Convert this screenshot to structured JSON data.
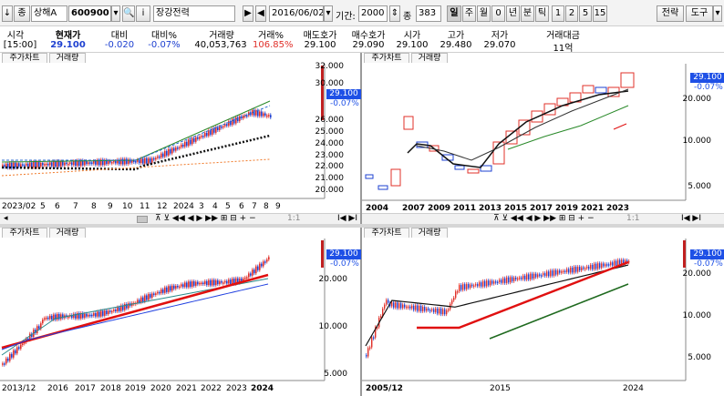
{
  "toolbar": {
    "down_arrow": "↓",
    "mode": "종",
    "market": "상해A",
    "code": "600900",
    "name": "장강전력",
    "date": "2016/06/02",
    "period_label": "기간:",
    "period": "2000",
    "count_label": "종",
    "count": "383",
    "periods": [
      "일",
      "주",
      "월",
      "0",
      "년",
      "분",
      "틱",
      "1",
      "2",
      "5",
      "15"
    ],
    "strategy": "전략",
    "tools": "도구"
  },
  "quote": {
    "headers": [
      "시각",
      "현재가",
      "대비",
      "대비%",
      "거래량",
      "거래%",
      "매도호가",
      "매수호가",
      "시가",
      "고가",
      "저가",
      "거래대금"
    ],
    "values": [
      "[15:00]",
      "29.100",
      "-0.020",
      "-0.07%",
      "40,053,763",
      "106.85%",
      "29.100",
      "29.090",
      "29.100",
      "29.480",
      "29.070",
      "11억"
    ]
  },
  "panels": {
    "tab_price": "주가차트",
    "tab_volume": "거래량",
    "price": "29.100",
    "change": "-0.07%",
    "tl": {
      "yticks": [
        "32.000",
        "30.000",
        "28.000",
        "26.000",
        "25.000",
        "24.000",
        "23.000",
        "22.000",
        "21.000",
        "20.000"
      ],
      "xlabels": [
        "2023/02",
        "5",
        "6",
        "7",
        "8",
        "9",
        "10",
        "11",
        "12",
        "2024",
        "3",
        "4",
        "5",
        "6",
        "7",
        "8",
        "9"
      ]
    },
    "tr": {
      "yticks": [
        "20.000",
        "10.000",
        "5.000"
      ],
      "xlabels": [
        "2004",
        "2007",
        "2009",
        "2011",
        "2013",
        "2015",
        "2017",
        "2019",
        "2021",
        "2023"
      ]
    },
    "bl": {
      "yticks": [
        "20.000",
        "10.000",
        "5.000"
      ],
      "xlabels": [
        "2013/12",
        "2016",
        "2017",
        "2018",
        "2019",
        "2020",
        "2021",
        "2022",
        "2023",
        "2024"
      ]
    },
    "br": {
      "yticks": [
        "20.000",
        "10.000",
        "5.000"
      ],
      "xlabels": [
        "2005/12",
        "2015",
        "2024"
      ]
    },
    "scroll_ratio": "1:1"
  },
  "colors": {
    "up": "#e0302a",
    "down": "#1e40d0",
    "ma_green": "#2a8a2a",
    "ma_red": "#e01010",
    "ma_blue": "#2040e0",
    "price_box": "#1e50e6"
  }
}
